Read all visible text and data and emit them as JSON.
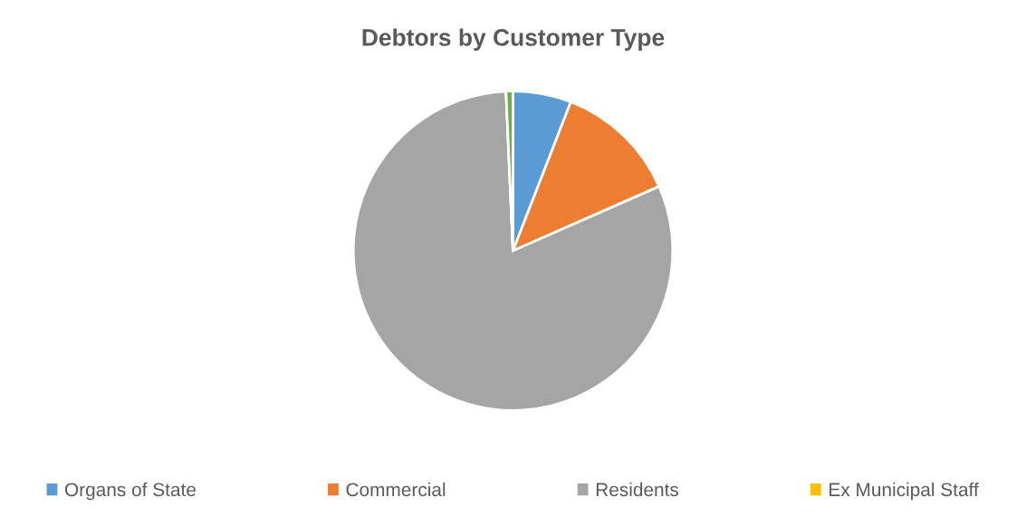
{
  "chart_data": {
    "type": "pie",
    "title": "Debtors by Customer Type",
    "categories": [
      "Organs of State",
      "Commercial",
      "Residents",
      "Ex Municipal Staff",
      null
    ],
    "values": [
      5.9,
      12.5,
      80.9,
      0,
      0.7
    ],
    "colors": [
      "#5b9bd5",
      "#ed7d31",
      "#a5a5a5",
      "#ffc000",
      "#70ad47"
    ],
    "legend": "bottom"
  }
}
